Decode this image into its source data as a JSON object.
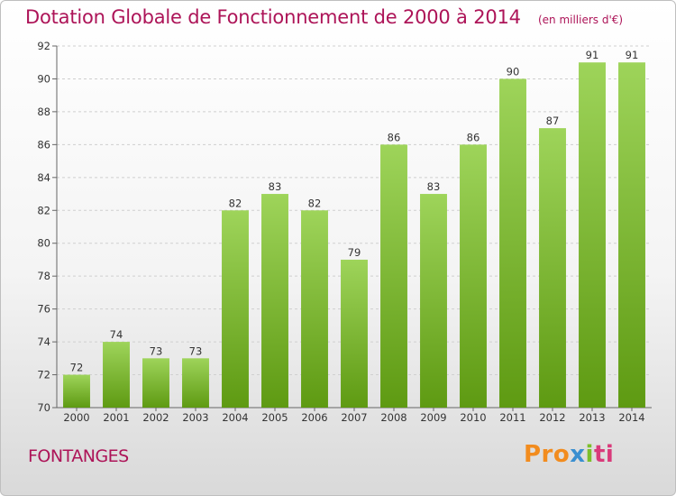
{
  "header": {
    "title": "Dotation Globale de Fonctionnement de 2000 à 2014",
    "subtitle": "(en milliers d'€)"
  },
  "footer": {
    "place": "FONTANGES",
    "logo": "Proxiti"
  },
  "colors": {
    "title": "#ad1458",
    "bar_top": "#9ed45a",
    "bar_bottom": "#5e9a12",
    "grid": "#cfcfcf"
  },
  "chart_data": {
    "type": "bar",
    "title": "Dotation Globale de Fonctionnement de 2000 à 2014",
    "subtitle": "(en milliers d'€)",
    "xlabel": "",
    "ylabel": "",
    "categories": [
      "2000",
      "2001",
      "2002",
      "2003",
      "2004",
      "2005",
      "2006",
      "2007",
      "2008",
      "2009",
      "2010",
      "2011",
      "2012",
      "2013",
      "2014"
    ],
    "values": [
      72,
      74,
      73,
      73,
      82,
      83,
      82,
      79,
      86,
      83,
      86,
      90,
      87,
      91,
      91
    ],
    "ylim": [
      70,
      92
    ],
    "yticks": [
      70,
      72,
      74,
      76,
      78,
      80,
      82,
      84,
      86,
      88,
      90,
      92
    ],
    "grid": true,
    "data_labels": true
  }
}
